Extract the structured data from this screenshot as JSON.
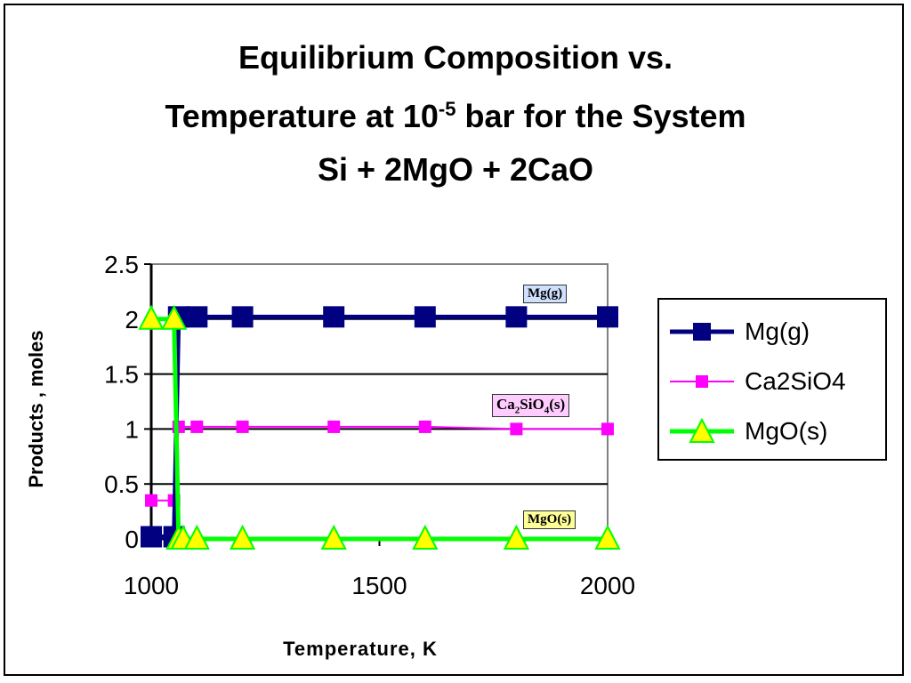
{
  "chart_data": {
    "type": "line",
    "title_lines": [
      "Equilibrium Composition vs.",
      "Temperature at 10",
      "-5",
      " bar for the System",
      "Si + 2MgO + 2CaO"
    ],
    "xlabel": "Temperature, K",
    "ylabel": "Products , moles",
    "xlim": [
      1000,
      2000
    ],
    "ylim": [
      0,
      2.5
    ],
    "xticks": [
      "1000",
      "1500",
      "2000"
    ],
    "yticks": [
      "0",
      "0.5",
      "1",
      "1.5",
      "2",
      "2.5"
    ],
    "grid": "horizontal major",
    "legend": "right",
    "series": [
      {
        "name": "Mg(g)",
        "color": "#000080",
        "marker": "square",
        "x": [
          1000,
          1050,
          1060,
          1100,
          1200,
          1400,
          1600,
          1800,
          2000
        ],
        "y": [
          0.02,
          0.02,
          2.02,
          2.02,
          2.02,
          2.02,
          2.02,
          2.02,
          2.02
        ]
      },
      {
        "name": "Ca2SiO4",
        "color": "#ff00ff",
        "marker": "square",
        "x": [
          1000,
          1050,
          1060,
          1100,
          1200,
          1400,
          1600,
          1800,
          2000
        ],
        "y": [
          0.35,
          0.35,
          1.02,
          1.02,
          1.02,
          1.02,
          1.02,
          1.0,
          1.0
        ]
      },
      {
        "name": "MgO(s)",
        "color": "#00ff00",
        "marker": "triangle",
        "x": [
          1000,
          1050,
          1060,
          1070,
          1100,
          1200,
          1400,
          1600,
          1800,
          2000
        ],
        "y": [
          2,
          2,
          0,
          0,
          0,
          0,
          0,
          0,
          0,
          0
        ]
      }
    ],
    "annotations": {
      "mg": "Mg(g)",
      "ca_pre": "Ca",
      "ca_sub1": "2",
      "ca_mid": "SiO",
      "ca_sub2": "4",
      "ca_post": "(s)",
      "mgo": "MgO(s)"
    }
  }
}
